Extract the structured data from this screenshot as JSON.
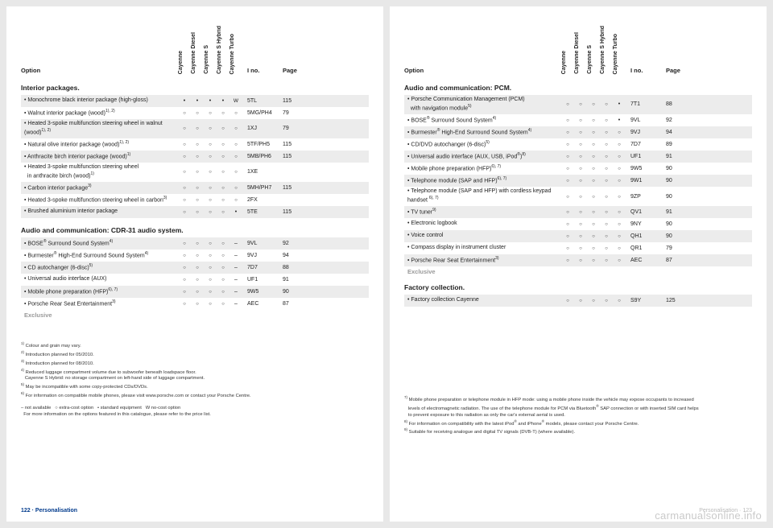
{
  "headers": {
    "option": "Option",
    "cols": [
      "Cayenne",
      "Cayenne Diesel",
      "Cayenne S",
      "Cayenne S Hybrid",
      "Cayenne Turbo"
    ],
    "ino": "I no.",
    "page": "Page"
  },
  "left": {
    "sections": [
      {
        "title": "Interior packages.",
        "rows": [
          {
            "label": "• Monochrome black interior package (high-gloss)",
            "marks": [
              "dot",
              "dot",
              "dot",
              "dot",
              "wmark"
            ],
            "ino": "5TL",
            "page": "115",
            "shade": true
          },
          {
            "label": "• Walnut interior package (wood)<sup>1), 2)</sup>",
            "marks": [
              "circ",
              "circ",
              "circ",
              "circ",
              "circ"
            ],
            "ino": "5MG/PH4",
            "page": "79",
            "shade": false
          },
          {
            "label": "• Heated 3-spoke multifunction steering wheel in walnut (wood)<sup>1), 2)</sup>",
            "marks": [
              "circ",
              "circ",
              "circ",
              "circ",
              "circ"
            ],
            "ino": "1XJ",
            "page": "79",
            "shade": true
          },
          {
            "label": "• Natural olive interior package (wood)<sup>1), 2)</sup>",
            "marks": [
              "circ",
              "circ",
              "circ",
              "circ",
              "circ"
            ],
            "ino": "5TF/PH5",
            "page": "115",
            "shade": false
          },
          {
            "label": "• Anthracite birch interior package (wood)<sup>1)</sup>",
            "marks": [
              "circ",
              "circ",
              "circ",
              "circ",
              "circ"
            ],
            "ino": "5MB/PH6",
            "page": "115",
            "shade": true
          },
          {
            "label": "• Heated 3-spoke multifunction steering wheel<br>&nbsp;&nbsp;in anthracite birch (wood)<sup>1)</sup>",
            "marks": [
              "circ",
              "circ",
              "circ",
              "circ",
              "circ"
            ],
            "ino": "1XE",
            "page": "",
            "shade": false
          },
          {
            "label": "• Carbon interior package<sup>3)</sup>",
            "marks": [
              "circ",
              "circ",
              "circ",
              "circ",
              "circ"
            ],
            "ino": "5MH/PH7",
            "page": "115",
            "shade": true
          },
          {
            "label": "• Heated 3-spoke multifunction steering wheel in carbon<sup>3)</sup>",
            "marks": [
              "circ",
              "circ",
              "circ",
              "circ",
              "circ"
            ],
            "ino": "2FX",
            "page": "",
            "shade": false
          },
          {
            "label": "• Brushed aluminium interior package",
            "marks": [
              "circ",
              "circ",
              "circ",
              "circ",
              "dot"
            ],
            "ino": "5TE",
            "page": "115",
            "shade": true
          }
        ]
      },
      {
        "title": "Audio and communication: CDR-31 audio system.",
        "rows": [
          {
            "label": "• BOSE<sup>®</sup> Surround Sound System<sup>4)</sup>",
            "marks": [
              "circ",
              "circ",
              "circ",
              "circ",
              "dash"
            ],
            "ino": "9VL",
            "page": "92",
            "shade": true
          },
          {
            "label": "• Burmester<sup>®</sup> High-End Surround Sound System<sup>4)</sup>",
            "marks": [
              "circ",
              "circ",
              "circ",
              "circ",
              "dash"
            ],
            "ino": "9VJ",
            "page": "94",
            "shade": false
          },
          {
            "label": "• CD autochanger (6-disc)<sup>5)</sup>",
            "marks": [
              "circ",
              "circ",
              "circ",
              "circ",
              "dash"
            ],
            "ino": "7D7",
            "page": "88",
            "shade": true
          },
          {
            "label": "• Universal audio interface (AUX)",
            "marks": [
              "circ",
              "circ",
              "circ",
              "circ",
              "dash"
            ],
            "ino": "UF1",
            "page": "91",
            "shade": false
          },
          {
            "label": "• Mobile phone preparation (HFP)<sup>6), 7)</sup>",
            "marks": [
              "circ",
              "circ",
              "circ",
              "circ",
              "dash"
            ],
            "ino": "9W5",
            "page": "90",
            "shade": true
          },
          {
            "label": "• Porsche Rear Seat Entertainment<sup>3)</sup>",
            "marks": [
              "circ",
              "circ",
              "circ",
              "circ",
              "dash"
            ],
            "ino": "AEC",
            "page": "87",
            "shade": false
          }
        ],
        "exclusive": "Exclusive"
      }
    ],
    "footnotes": "<sup>1)</sup> Colour and grain may vary.<br><sup>2)</sup> Introduction planned for 05/2010.<br><sup>3)</sup> Introduction planned for 08/2010.<br><sup>4)</sup> Reduced luggage compartment volume due to subwoofer beneath loadspace floor.<br>&nbsp;&nbsp;&nbsp;Cayenne S Hybrid: no storage compartment on left-hand side of luggage compartment.<br><sup>5)</sup> May be incompatible with some copy-protected CDs/DVDs.<br><sup>6)</sup> For information on compatible mobile phones, please visit www.porsche.com or contact your Porsche Centre.<br><br>– not available &nbsp;&nbsp;○ extra-cost option &nbsp;&nbsp;• standard equipment &nbsp;&nbsp;W no-cost option<br>&nbsp;&nbsp;For more information on the options featured in this catalogue, please refer to the price list.",
    "pagenum": "122 · Personalisation"
  },
  "right": {
    "sections": [
      {
        "title": "Audio and communication: PCM.",
        "rows": [
          {
            "label": "• Porsche Communication Management (PCM)<br>&nbsp;&nbsp;with navigation module<sup>5)</sup>",
            "marks": [
              "circ",
              "circ",
              "circ",
              "circ",
              "dot"
            ],
            "ino": "7T1",
            "page": "88",
            "shade": true
          },
          {
            "label": "• BOSE<sup>®</sup> Surround Sound System<sup>4)</sup>",
            "marks": [
              "circ",
              "circ",
              "circ",
              "circ",
              "dot"
            ],
            "ino": "9VL",
            "page": "92",
            "shade": false
          },
          {
            "label": "• Burmester<sup>®</sup> High-End Surround Sound System<sup>4)</sup>",
            "marks": [
              "circ",
              "circ",
              "circ",
              "circ",
              "circ"
            ],
            "ino": "9VJ",
            "page": "94",
            "shade": true
          },
          {
            "label": "• CD/DVD autochanger (6-disc)<sup>5)</sup>",
            "marks": [
              "circ",
              "circ",
              "circ",
              "circ",
              "circ"
            ],
            "ino": "7D7",
            "page": "89",
            "shade": false
          },
          {
            "label": "• Universal audio interface (AUX, USB, iPod<sup>®</sup>)<sup>8)</sup>",
            "marks": [
              "circ",
              "circ",
              "circ",
              "circ",
              "circ"
            ],
            "ino": "UF1",
            "page": "91",
            "shade": true
          },
          {
            "label": "• Mobile phone preparation (HFP)<sup>6), 7)</sup>",
            "marks": [
              "circ",
              "circ",
              "circ",
              "circ",
              "circ"
            ],
            "ino": "9W5",
            "page": "90",
            "shade": false
          },
          {
            "label": "• Telephone module (SAP and HFP)<sup>6), 7)</sup>",
            "marks": [
              "circ",
              "circ",
              "circ",
              "circ",
              "circ"
            ],
            "ino": "9W1",
            "page": "90",
            "shade": true
          },
          {
            "label": "• Telephone module (SAP and HFP) with cordless keypad handset <sup>6), 7)</sup>",
            "marks": [
              "circ",
              "circ",
              "circ",
              "circ",
              "circ"
            ],
            "ino": "9ZP",
            "page": "90",
            "shade": false
          },
          {
            "label": "• TV tuner<sup>9)</sup>",
            "marks": [
              "circ",
              "circ",
              "circ",
              "circ",
              "circ"
            ],
            "ino": "QV1",
            "page": "91",
            "shade": true
          },
          {
            "label": "• Electronic logbook",
            "marks": [
              "circ",
              "circ",
              "circ",
              "circ",
              "circ"
            ],
            "ino": "9NY",
            "page": "90",
            "shade": false
          },
          {
            "label": "• Voice control",
            "marks": [
              "circ",
              "circ",
              "circ",
              "circ",
              "circ"
            ],
            "ino": "QH1",
            "page": "90",
            "shade": true
          },
          {
            "label": "• Compass display in instrument cluster",
            "marks": [
              "circ",
              "circ",
              "circ",
              "circ",
              "circ"
            ],
            "ino": "QR1",
            "page": "79",
            "shade": false
          },
          {
            "label": "• Porsche Rear Seat Entertainment<sup>3)</sup>",
            "marks": [
              "circ",
              "circ",
              "circ",
              "circ",
              "circ"
            ],
            "ino": "AEC",
            "page": "87",
            "shade": true
          }
        ],
        "exclusive": "Exclusive"
      },
      {
        "title": "Factory collection.",
        "rows": [
          {
            "label": "• Factory collection Cayenne",
            "marks": [
              "circ",
              "circ",
              "circ",
              "circ",
              "circ"
            ],
            "ino": "S9Y",
            "page": "125",
            "shade": true
          }
        ]
      }
    ],
    "footnotes": "<sup>7)</sup> Mobile phone preparation or telephone module in HFP mode: using a mobile phone inside the vehicle may expose occupants to increased<br>&nbsp;&nbsp;&nbsp;levels of electromagnetic radiation. The use of the telephone module for PCM via Bluetooth<sup>®</sup> SAP connection or with inserted SIM card helps<br>&nbsp;&nbsp;&nbsp;to prevent exposure to this radiation as only the car's external aerial is used.<br><sup>8)</sup> For information on compatibility with the latest iPod<sup>®</sup> and iPhone<sup>®</sup> models, please contact your Porsche Centre.<br><sup>9)</sup> Suitable for receiving analogue and digital TV signals (DVB-T) (where available).",
    "pagenum": "Personalisation · 123"
  },
  "watermark": "carmanualsonline.info"
}
